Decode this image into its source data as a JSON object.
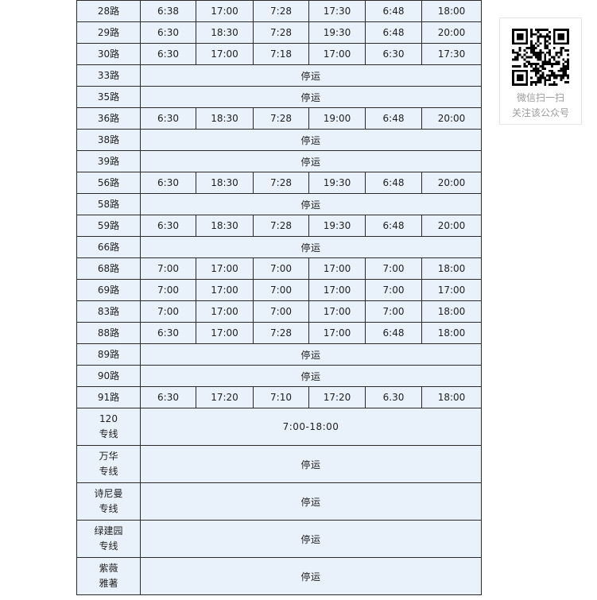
{
  "table": {
    "rows": [
      {
        "route": [
          "28路"
        ],
        "times": [
          "6:38",
          "17:00",
          "7:28",
          "17:30",
          "6:48",
          "18:00"
        ]
      },
      {
        "route": [
          "29路"
        ],
        "times": [
          "6:30",
          "18:30",
          "7:28",
          "19:30",
          "6:48",
          "20:00"
        ]
      },
      {
        "route": [
          "30路"
        ],
        "times": [
          "6:30",
          "17:00",
          "7:18",
          "17:00",
          "6:30",
          "17:30"
        ]
      },
      {
        "route": [
          "33路"
        ],
        "merged": "停运"
      },
      {
        "route": [
          "35路"
        ],
        "merged": "停运"
      },
      {
        "route": [
          "36路"
        ],
        "times": [
          "6:30",
          "18:30",
          "7:28",
          "19:00",
          "6:48",
          "20:00"
        ]
      },
      {
        "route": [
          "38路"
        ],
        "merged": "停运"
      },
      {
        "route": [
          "39路"
        ],
        "merged": "停运"
      },
      {
        "route": [
          "56路"
        ],
        "times": [
          "6:30",
          "18:30",
          "7:28",
          "19:30",
          "6:48",
          "20:00"
        ]
      },
      {
        "route": [
          "58路"
        ],
        "merged": "停运"
      },
      {
        "route": [
          "59路"
        ],
        "times": [
          "6:30",
          "18:30",
          "7:28",
          "19:30",
          "6:48",
          "20:00"
        ]
      },
      {
        "route": [
          "66路"
        ],
        "merged": "停运"
      },
      {
        "route": [
          "68路"
        ],
        "times": [
          "7:00",
          "17:00",
          "7:00",
          "17:00",
          "7:00",
          "18:00"
        ]
      },
      {
        "route": [
          "69路"
        ],
        "times": [
          "7:00",
          "17:00",
          "7:00",
          "17:00",
          "7:00",
          "17:00"
        ]
      },
      {
        "route": [
          "83路"
        ],
        "times": [
          "7:00",
          "17:00",
          "7:00",
          "17:00",
          "7:00",
          "18:00"
        ]
      },
      {
        "route": [
          "88路"
        ],
        "times": [
          "6:30",
          "17:00",
          "7:28",
          "17:00",
          "6:48",
          "18:00"
        ]
      },
      {
        "route": [
          "89路"
        ],
        "merged": "停运"
      },
      {
        "route": [
          "90路"
        ],
        "merged": "停运"
      },
      {
        "route": [
          "91路"
        ],
        "times": [
          "6:30",
          "17:20",
          "7:10",
          "17:20",
          "6.30",
          "18:00"
        ]
      },
      {
        "route": [
          "120",
          "专线"
        ],
        "merged": "7:00-18:00"
      },
      {
        "route": [
          "万华",
          "专线"
        ],
        "merged": "停运"
      },
      {
        "route": [
          "诗尼曼",
          "专线"
        ],
        "merged": "停运"
      },
      {
        "route": [
          "绿建园",
          "专线"
        ],
        "merged": "停运"
      },
      {
        "route": [
          "紫薇",
          "雅著"
        ],
        "merged": "停运"
      }
    ]
  },
  "qr_panel": {
    "line1": "微信扫一扫",
    "line2": "关注该公众号"
  },
  "colors": {
    "cell_bg": "#e9f2fa",
    "table_border": "#2a2a2a",
    "qr_text": "#9b9b9b",
    "panel_border": "#e7e7e7"
  }
}
